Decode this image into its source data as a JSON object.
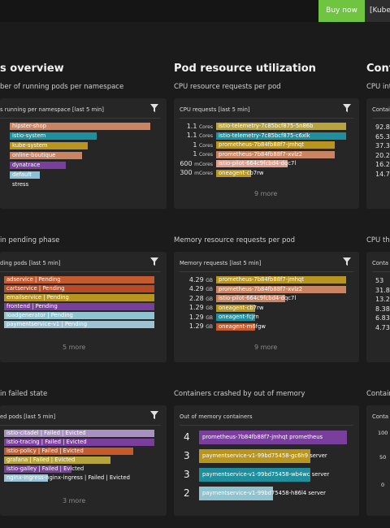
{
  "topbar": {
    "buy_now": "Buy now",
    "kube_tab": "[Kube"
  },
  "col1": {
    "title": "s overview",
    "subtitle": "ber of running pods per namespace",
    "panel1": {
      "head": "s running per namespace [last 5 min]",
      "rows": [
        {
          "label": "hipster-shop",
          "color": "#c98464",
          "frac": 0.97
        },
        {
          "label": "istio-system",
          "color": "#1f8f9d",
          "frac": 0.6
        },
        {
          "label": "kube-system",
          "color": "#b8951e",
          "frac": 0.54
        },
        {
          "label": "online-boutique",
          "color": "#c98464",
          "frac": 0.5
        },
        {
          "label": "dynatrace",
          "color": "#7a3f9d",
          "frac": 0.39
        },
        {
          "label": "default",
          "color": "#8dbfd6",
          "frac": 0.21
        },
        {
          "label": "stress",
          "color": "",
          "frac": 0
        }
      ]
    },
    "sub2": "in pending phase",
    "panel2": {
      "head": "ding pods [last 5 min]",
      "rows": [
        {
          "label": "adservice | Pending",
          "color": "#c55a2c"
        },
        {
          "label": "cartservice | Pending",
          "color": "#b84b25"
        },
        {
          "label": "emailservice | Pending",
          "color": "#b8951e"
        },
        {
          "label": "frontend | Pending",
          "color": "#7a3f9d"
        },
        {
          "label": "loadgenerator | Pending",
          "color": "#8fc3cf"
        },
        {
          "label": "paymentservice-v1 | Pending",
          "color": "#9cc2d3"
        }
      ],
      "more": "5 more"
    },
    "sub3": "in failed state",
    "panel3": {
      "head": "ed pods [last 5 min]",
      "rows": [
        {
          "label": "istio-citadel | Failed | Evicted",
          "color": "#a890c2",
          "frac": 1.0
        },
        {
          "label": "istio-tracing | Failed | Evicted",
          "color": "#7a3f9d",
          "frac": 1.0
        },
        {
          "label": "istio-policy | Failed | Evicted",
          "color": "#c55a2c",
          "frac": 0.86
        },
        {
          "label": "grafana | Failed | Evicted",
          "color": "#b8a43c",
          "frac": 0.71
        },
        {
          "label": "istio-galley | Failed | Evicted",
          "color": "#7a3f9d",
          "frac": 0.45
        },
        {
          "label": "nginx-ingress-nginx-ingress | Failed | Evicted",
          "color": "#9cc2d3",
          "frac": 0.29
        }
      ],
      "more": "3 more"
    }
  },
  "col2": {
    "title": "Pod resource utilization",
    "subtitle": "CPU resource requests per pod",
    "panel1": {
      "head": "CPU requests [last 5 min]",
      "rows": [
        {
          "value": "1.1",
          "unit": "Cores",
          "label": "istio-telemetry-7c85bcf875-5n86b",
          "color": "#b8a43c",
          "frac": 1.0
        },
        {
          "value": "1.1",
          "unit": "Cores",
          "label": "istio-telemetry-7c85bcf875-c6xlk",
          "color": "#1f8f9d",
          "frac": 1.0
        },
        {
          "value": "1",
          "unit": "Cores",
          "label": "prometheus-7b84fb88f7-jmhqt",
          "color": "#b8951e",
          "frac": 0.91
        },
        {
          "value": "1",
          "unit": "Cores",
          "label": "prometheus-7b84fb88f7-xvlz2",
          "color": "#c98464",
          "frac": 0.91
        },
        {
          "value": "600",
          "unit": "mCores",
          "label": "istio-pilot-664c9fcbd4-dqc7l",
          "color": "#e0a090",
          "frac": 0.55
        },
        {
          "value": "300",
          "unit": "mCores",
          "label": "oneagent-cb7rw",
          "color": "#b8951e",
          "frac": 0.27
        }
      ],
      "more": "9 more"
    },
    "sub2": "Memory resource requests per pod",
    "panel2": {
      "head": "Memory requests [last 5 min]",
      "rows": [
        {
          "value": "4.29",
          "unit": "GB",
          "label": "prometheus-7b84fb88f7-jmhqt",
          "color": "#b8951e",
          "frac": 1.0
        },
        {
          "value": "4.29",
          "unit": "GB",
          "label": "prometheus-7b84fb88f7-xvlz2",
          "color": "#c98464",
          "frac": 1.0
        },
        {
          "value": "2.28",
          "unit": "GB",
          "label": "istio-pilot-664c9fcbd4-dqc7l",
          "color": "#c98464",
          "frac": 0.53
        },
        {
          "value": "1.29",
          "unit": "GB",
          "label": "oneagent-cb7rw",
          "color": "#b8951e",
          "frac": 0.3
        },
        {
          "value": "1.29",
          "unit": "GB",
          "label": "oneagent-fcjrn",
          "color": "#1f8f9d",
          "frac": 0.3
        },
        {
          "value": "1.29",
          "unit": "GB",
          "label": "oneagent-m6fgw",
          "color": "#c55a2c",
          "frac": 0.3
        }
      ],
      "more": "9 more"
    },
    "sub3": "Containers crashed by out of memory",
    "panel3": {
      "head": "Out of memory containers",
      "rows": [
        {
          "value": "4",
          "label": "prometheus-7b84fb88f7-jmhqt prometheus",
          "color": "#7a3f9d",
          "frac": 1.0
        },
        {
          "value": "3",
          "label": "paymentservice-v1-99bd75458-gc6h9 server",
          "color": "#b8951e",
          "frac": 0.75
        },
        {
          "value": "3",
          "label": "paymentservice-v1-99bd75458-wb4wc server",
          "color": "#1f8f9d",
          "frac": 0.75
        },
        {
          "value": "2",
          "label": "paymentservice-v1-99bd75458-h86l4 server",
          "color": "#8fc3cf",
          "frac": 0.5
        }
      ]
    }
  },
  "col3": {
    "title": "Conta",
    "subtitle": "CPU int",
    "panel1": {
      "head": "Contai",
      "values": [
        "92.8",
        "65.3",
        "37.3",
        "20.2",
        "16.2",
        "14.7"
      ]
    },
    "sub2": "CPU thr",
    "panel2": {
      "head": "Conta",
      "values": [
        "53",
        "31.8",
        "13.2",
        "8.38",
        "6.83",
        "4.73"
      ]
    },
    "sub3": "Contain",
    "panel3": {
      "head": "Conta",
      "values": [
        "100",
        "50",
        "0"
      ]
    }
  }
}
